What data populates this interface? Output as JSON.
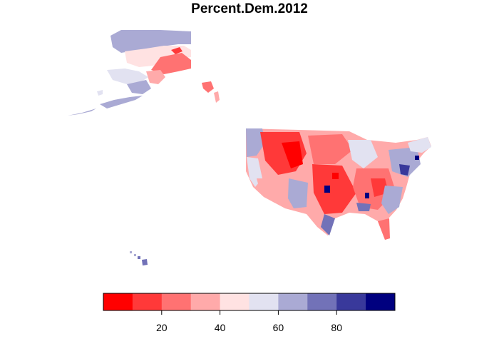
{
  "title": "Percent.Dem.2012",
  "legend": {
    "ticks": [
      {
        "value": 20,
        "label": "20"
      },
      {
        "value": 40,
        "label": "40"
      },
      {
        "value": 60,
        "label": "60"
      },
      {
        "value": 80,
        "label": "80"
      }
    ],
    "range": [
      0,
      100
    ],
    "bins": [
      {
        "from": 0,
        "to": 10,
        "color": "#ff0000"
      },
      {
        "from": 10,
        "to": 20,
        "color": "#ff3939"
      },
      {
        "from": 20,
        "to": 30,
        "color": "#ff7272"
      },
      {
        "from": 30,
        "to": 40,
        "color": "#ffaaaa"
      },
      {
        "from": 40,
        "to": 50,
        "color": "#ffe2e2"
      },
      {
        "from": 50,
        "to": 60,
        "color": "#e2e2f1"
      },
      {
        "from": 60,
        "to": 70,
        "color": "#aaaad4"
      },
      {
        "from": 70,
        "to": 80,
        "color": "#7272b8"
      },
      {
        "from": 80,
        "to": 90,
        "color": "#39399b"
      },
      {
        "from": 90,
        "to": 100,
        "color": "#00007f"
      }
    ]
  }
}
